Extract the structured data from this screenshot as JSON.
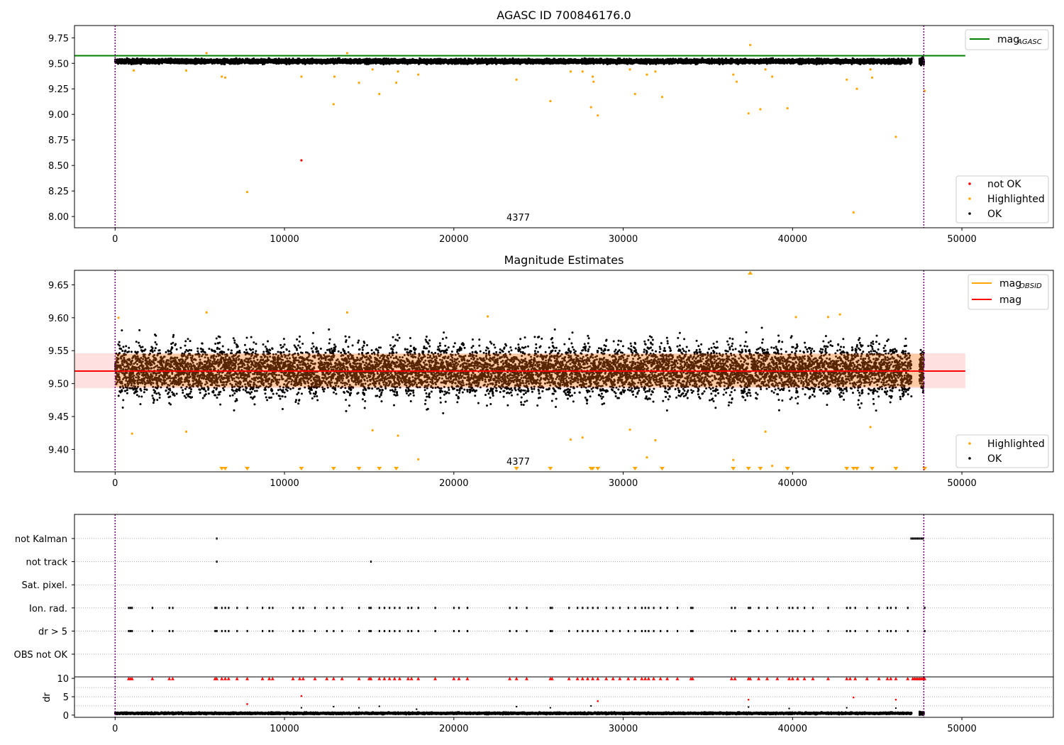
{
  "chart_data": [
    {
      "type": "scatter",
      "title": "AGASC ID 700846176.0",
      "xlabel": "",
      "ylabel": "",
      "xlim": [
        -2400,
        55400
      ],
      "ylim": [
        7.89,
        9.87
      ],
      "xticks": [
        0,
        10000,
        20000,
        30000,
        40000,
        50000
      ],
      "xtick_labels": [
        "0",
        "10000",
        "20000",
        "30000",
        "40000",
        "50000"
      ],
      "yticks": [
        8.0,
        8.25,
        8.5,
        8.75,
        9.0,
        9.25,
        9.5,
        9.75
      ],
      "ytick_labels": [
        "8.00",
        "8.25",
        "8.50",
        "8.75",
        "9.00",
        "9.25",
        "9.50",
        "9.75"
      ],
      "vlines": [
        0,
        47750
      ],
      "hline": {
        "y": 9.575,
        "x_range": [
          -2400,
          50200
        ]
      },
      "ok_band": {
        "center": 9.52,
        "spread": 0.03,
        "x_range": [
          0,
          47000
        ],
        "end_cluster_x": [
          47500,
          47750
        ]
      },
      "annotation": {
        "text": "4377",
        "x": 23800,
        "y": 7.96
      },
      "legends": [
        {
          "position": "upper-right",
          "entries": [
            {
              "label": "mag",
              "sub": "AGASC",
              "color": "#008000",
              "kind": "line"
            }
          ]
        },
        {
          "position": "lower-right",
          "entries": [
            {
              "label": "not OK",
              "color": "#ff0000",
              "kind": "dot"
            },
            {
              "label": "Highlighted",
              "color": "#ffa500",
              "kind": "dot"
            },
            {
              "label": "OK",
              "color": "#000000",
              "kind": "dot"
            }
          ]
        }
      ],
      "series": [
        {
          "name": "Highlighted",
          "color": "#ffa500",
          "points": [
            [
              1100,
              9.43
            ],
            [
              4200,
              9.43
            ],
            [
              5400,
              9.6
            ],
            [
              6300,
              9.37
            ],
            [
              6500,
              9.36
            ],
            [
              7800,
              8.24
            ],
            [
              11000,
              9.37
            ],
            [
              12900,
              9.1
            ],
            [
              12950,
              9.37
            ],
            [
              13700,
              9.6
            ],
            [
              14400,
              9.31
            ],
            [
              15200,
              9.44
            ],
            [
              15600,
              9.2
            ],
            [
              16600,
              9.31
            ],
            [
              16700,
              9.42
            ],
            [
              17900,
              9.39
            ],
            [
              23700,
              9.34
            ],
            [
              25700,
              9.13
            ],
            [
              26900,
              9.42
            ],
            [
              27600,
              9.42
            ],
            [
              28100,
              9.07
            ],
            [
              28200,
              9.37
            ],
            [
              28250,
              9.32
            ],
            [
              28500,
              8.99
            ],
            [
              30400,
              9.44
            ],
            [
              30700,
              9.2
            ],
            [
              31400,
              9.39
            ],
            [
              31900,
              9.42
            ],
            [
              32300,
              9.17
            ],
            [
              36500,
              9.39
            ],
            [
              36700,
              9.32
            ],
            [
              37400,
              9.01
            ],
            [
              37500,
              9.68
            ],
            [
              38100,
              9.05
            ],
            [
              38400,
              9.44
            ],
            [
              38800,
              9.37
            ],
            [
              39700,
              9.06
            ],
            [
              43200,
              9.34
            ],
            [
              43600,
              8.04
            ],
            [
              43800,
              9.25
            ],
            [
              44600,
              9.44
            ],
            [
              44700,
              9.36
            ],
            [
              46100,
              8.78
            ],
            [
              47800,
              9.23
            ]
          ]
        },
        {
          "name": "not OK",
          "color": "#ff0000",
          "points": [
            [
              11000,
              8.55
            ]
          ]
        }
      ]
    },
    {
      "type": "scatter",
      "title": "Magnitude Estimates",
      "xlabel": "",
      "ylabel": "",
      "xlim": [
        -2400,
        55400
      ],
      "ylim": [
        9.366,
        9.672
      ],
      "xticks": [
        0,
        10000,
        20000,
        30000,
        40000,
        50000
      ],
      "xtick_labels": [
        "0",
        "10000",
        "20000",
        "30000",
        "40000",
        "50000"
      ],
      "yticks": [
        9.4,
        9.45,
        9.5,
        9.55,
        9.6,
        9.65
      ],
      "ytick_labels": [
        "9.40",
        "9.45",
        "9.50",
        "9.55",
        "9.60",
        "9.65"
      ],
      "vlines": [
        0,
        47750
      ],
      "mag_line": {
        "y": 9.519,
        "band": [
          9.493,
          9.546
        ],
        "x_range": [
          -2400,
          50200
        ]
      },
      "obsid_band": {
        "band": [
          9.495,
          9.545
        ],
        "x_range": [
          0,
          47750
        ]
      },
      "ok_band": {
        "center": 9.52,
        "spread": 0.03,
        "x_range": [
          0,
          47000
        ],
        "end_cluster_x": [
          47500,
          47750
        ]
      },
      "annotation": {
        "text": "4377",
        "x": 23800,
        "y": 9.377
      },
      "legends": [
        {
          "position": "upper-right",
          "entries": [
            {
              "label": "mag",
              "sub": "OBSID",
              "color": "#ffa500",
              "kind": "line"
            },
            {
              "label": "mag",
              "sub": "",
              "color": "#ff0000",
              "kind": "line"
            }
          ]
        },
        {
          "position": "lower-right",
          "entries": [
            {
              "label": "Highlighted",
              "color": "#ffa500",
              "kind": "dot"
            },
            {
              "label": "OK",
              "color": "#000000",
              "kind": "dot"
            }
          ]
        }
      ],
      "series": [
        {
          "name": "Highlighted",
          "color": "#ffa500",
          "points": [
            [
              200,
              9.6
            ],
            [
              1000,
              9.424
            ],
            [
              4200,
              9.427
            ],
            [
              5400,
              9.608
            ],
            [
              13700,
              9.608
            ],
            [
              15200,
              9.429
            ],
            [
              16700,
              9.421
            ],
            [
              17900,
              9.385
            ],
            [
              22000,
              9.602
            ],
            [
              26900,
              9.415
            ],
            [
              27600,
              9.418
            ],
            [
              30400,
              9.43
            ],
            [
              31400,
              9.388
            ],
            [
              31900,
              9.414
            ],
            [
              36500,
              9.384
            ],
            [
              38400,
              9.427
            ],
            [
              38800,
              9.375
            ],
            [
              40200,
              9.601
            ],
            [
              42100,
              9.601
            ],
            [
              42800,
              9.605
            ],
            [
              44600,
              9.434
            ]
          ]
        },
        {
          "name": "Highlighted below range",
          "color": "#ffa500",
          "marker": "triangle-down",
          "x": [
            6300,
            6500,
            7800,
            11000,
            12900,
            14400,
            15600,
            16600,
            23700,
            25700,
            28100,
            28200,
            28500,
            30700,
            32300,
            36500,
            37400,
            38100,
            39700,
            43200,
            43600,
            43800,
            44700,
            46100,
            47800
          ]
        },
        {
          "name": "Highlighted above range",
          "color": "#ffa500",
          "marker": "triangle-up",
          "x": [
            37500
          ]
        }
      ]
    },
    {
      "type": "scatter",
      "title": "",
      "xlabel": "",
      "ylabel": "",
      "xlim": [
        -2400,
        55400
      ],
      "xticks": [
        0,
        10000,
        20000,
        30000,
        40000,
        50000
      ],
      "xtick_labels": [
        "0",
        "10000",
        "20000",
        "30000",
        "40000",
        "50000"
      ],
      "flag_rows": [
        "not Kalman",
        "not track",
        "Sat. pixel.",
        "Ion. rad.",
        "dr > 5",
        "OBS not OK"
      ],
      "vlines": [
        0,
        47750
      ],
      "flags": {
        "not Kalman": [
          6000,
          47000,
          47100,
          47200,
          47300,
          47400,
          47500,
          47600,
          47700
        ],
        "not track": [
          6000,
          15100
        ],
        "Sat. pixel.": [],
        "Ion. rad.": [
          800,
          900,
          1000,
          2200,
          3200,
          3400,
          5900,
          6000,
          6300,
          6500,
          6700,
          7200,
          7800,
          8700,
          9100,
          9300,
          10500,
          10900,
          11100,
          11800,
          12500,
          12900,
          13400,
          14400,
          15000,
          15100,
          15600,
          15900,
          16200,
          16500,
          16800,
          17300,
          17500,
          17900,
          18900,
          20000,
          20300,
          20800,
          23300,
          23700,
          24300,
          25700,
          25800,
          26800,
          27300,
          27600,
          27900,
          28200,
          28500,
          29000,
          29400,
          29800,
          30300,
          30700,
          31100,
          31300,
          31500,
          31800,
          32200,
          32600,
          33200,
          34000,
          34100,
          36400,
          36600,
          37400,
          37500,
          38000,
          38500,
          39100,
          39800,
          40000,
          40300,
          40700,
          41200,
          42100,
          43200,
          43400,
          43700,
          44400,
          45100,
          45600,
          45800,
          46100,
          46800,
          47800
        ],
        "dr > 5": [
          800,
          900,
          1000,
          2200,
          3200,
          3400,
          5900,
          6000,
          6300,
          6500,
          6700,
          7200,
          7800,
          8700,
          9100,
          9300,
          10500,
          10900,
          11100,
          11800,
          12500,
          12900,
          13400,
          14400,
          15000,
          15100,
          15600,
          15900,
          16200,
          16500,
          16800,
          17300,
          17500,
          17900,
          18900,
          20000,
          20300,
          20800,
          23300,
          23700,
          24300,
          25700,
          25800,
          26800,
          27300,
          27600,
          27900,
          28200,
          28500,
          29000,
          29400,
          29800,
          30300,
          30700,
          31100,
          31300,
          31500,
          31800,
          32200,
          32600,
          33200,
          34000,
          34100,
          36400,
          36600,
          37400,
          37500,
          38000,
          38500,
          39100,
          39800,
          40000,
          40300,
          40700,
          41200,
          42100,
          43200,
          43400,
          43700,
          44400,
          45100,
          45600,
          45800,
          46100,
          46800,
          47800
        ],
        "OBS not OK": []
      }
    },
    {
      "type": "scatter",
      "title": "",
      "xlabel": "",
      "ylabel": "dr",
      "xlim": [
        -2400,
        55400
      ],
      "ylim": [
        -0.6,
        10.4
      ],
      "xticks": [
        0,
        10000,
        20000,
        30000,
        40000,
        50000
      ],
      "xtick_labels": [
        "0",
        "10000",
        "20000",
        "30000",
        "40000",
        "50000"
      ],
      "yticks": [
        0,
        5,
        10
      ],
      "ytick_labels": [
        "0",
        "5",
        "10"
      ],
      "vlines": [
        0,
        47750
      ],
      "clip_y": 10,
      "ok_band": {
        "center": 0.5,
        "spread": 0.35,
        "x_range": [
          0,
          47000
        ],
        "end_cluster_x": [
          47500,
          47750
        ]
      },
      "series": [
        {
          "name": "capped",
          "color": "#ff0000",
          "marker": "triangle-up",
          "x": [
            800,
            900,
            1000,
            2200,
            3200,
            3400,
            5900,
            6000,
            6300,
            6500,
            6700,
            7200,
            7800,
            8700,
            9100,
            9300,
            10500,
            10900,
            11100,
            11800,
            12500,
            12900,
            13400,
            14400,
            15000,
            15100,
            15600,
            15900,
            16200,
            16500,
            16800,
            17300,
            17500,
            17900,
            18900,
            20000,
            20300,
            20800,
            23300,
            23700,
            24300,
            25700,
            25800,
            26800,
            27300,
            27600,
            27900,
            28200,
            28500,
            29000,
            29400,
            29800,
            30300,
            30700,
            31100,
            31300,
            31500,
            31800,
            32200,
            32600,
            33200,
            34000,
            34100,
            36400,
            36600,
            37400,
            37500,
            38000,
            38500,
            39100,
            39800,
            40000,
            40300,
            40700,
            41200,
            42100,
            43200,
            43400,
            43700,
            44400,
            45100,
            45600,
            45800,
            46100,
            46800,
            47100,
            47200,
            47300,
            47400,
            47500,
            47600,
            47700,
            47800
          ]
        },
        {
          "name": "highlighted",
          "color": "#ff0000",
          "points": [
            [
              7800,
              3.0
            ],
            [
              11000,
              5.2
            ],
            [
              28500,
              3.8
            ],
            [
              37400,
              4.2
            ],
            [
              43600,
              4.8
            ],
            [
              46100,
              4.2
            ]
          ]
        },
        {
          "name": "ok-outliers",
          "color": "#000000",
          "points": [
            [
              11000,
              2.0
            ],
            [
              12900,
              2.3
            ],
            [
              14400,
              2.0
            ],
            [
              15600,
              2.4
            ],
            [
              17800,
              1.6
            ],
            [
              23700,
              2.3
            ],
            [
              25700,
              2.0
            ],
            [
              28100,
              2.5
            ],
            [
              37400,
              2.2
            ],
            [
              39800,
              1.8
            ],
            [
              43200,
              2.0
            ],
            [
              46100,
              1.9
            ]
          ]
        }
      ]
    }
  ]
}
